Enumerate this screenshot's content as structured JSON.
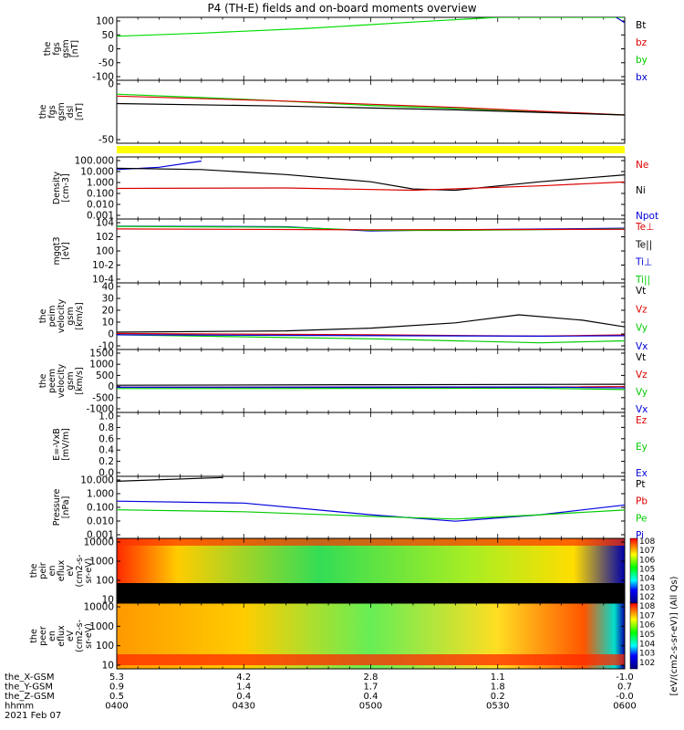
{
  "title": "P4 (TH-E) fields and on-board moments overview",
  "chart_data": [
    {
      "type": "line",
      "ylabel": [
        "the",
        "fgs",
        "gsm",
        "[nT]"
      ],
      "ylim": [
        -100,
        100
      ],
      "yticks": [
        "100",
        "50",
        "0",
        "-50",
        "-100"
      ],
      "legend": [
        "Bt",
        "bz",
        "by",
        "bx"
      ],
      "series": [
        {
          "name": "by",
          "color": "#00dd00",
          "points": [
            [
              0,
              40
            ],
            [
              20,
              50
            ],
            [
              45,
              65
            ],
            [
              70,
              85
            ],
            [
              90,
              100
            ],
            [
              158,
              100
            ],
            [
              158,
              -100
            ]
          ]
        },
        {
          "name": "bx",
          "color": "#0000cc",
          "points": [
            [
              118,
              100
            ],
            [
              125,
              40
            ],
            [
              132,
              -30
            ],
            [
              137,
              -100
            ]
          ]
        },
        {
          "name": "Bt",
          "color": "#0000ff",
          "points": [
            [
              170,
              -100
            ],
            [
              171,
              100
            ]
          ]
        }
      ]
    },
    {
      "type": "line",
      "ylabel": [
        "the",
        "fgs",
        "gsm",
        "dsl",
        "[nT]"
      ],
      "ylim": [
        -75,
        25
      ],
      "yticks": [
        "0",
        "-50"
      ],
      "legend": [],
      "series": [
        {
          "name": "by",
          "color": "#00dd00",
          "points": [
            [
              0,
              3
            ],
            [
              30,
              -5
            ],
            [
              60,
              -15
            ],
            [
              90,
              -22
            ],
            [
              120,
              -30
            ],
            [
              150,
              -28
            ],
            [
              160,
              -10
            ],
            [
              165,
              5
            ],
            [
              170,
              25
            ]
          ]
        },
        {
          "name": "bz",
          "color": "#dd0000",
          "points": [
            [
              0,
              0
            ],
            [
              40,
              -8
            ],
            [
              80,
              -18
            ],
            [
              120,
              -30
            ],
            [
              150,
              -45
            ],
            [
              165,
              -60
            ],
            [
              170,
              -65
            ]
          ]
        },
        {
          "name": "Bt",
          "color": "#000000",
          "points": [
            [
              0,
              -12
            ],
            [
              40,
              -16
            ],
            [
              80,
              -22
            ],
            [
              120,
              -30
            ],
            [
              150,
              -28
            ],
            [
              162,
              -40
            ],
            [
              168,
              -55
            ],
            [
              170,
              -70
            ]
          ]
        }
      ]
    },
    {
      "type": "line",
      "scale": "log",
      "ylabel": [
        "Density",
        "[cm^-3]"
      ],
      "ylim": [
        0.0005,
        500
      ],
      "yticks": [
        "100.000",
        "10.000",
        "1.000",
        "0.100",
        "0.010",
        "0.001"
      ],
      "legend": [
        "Ne",
        "Ni",
        "Npot"
      ],
      "series": [
        {
          "name": "Npot",
          "color": "#0000dd",
          "points": [
            [
              0,
              30
            ],
            [
              10,
              50
            ],
            [
              20,
              200
            ]
          ]
        },
        {
          "name": "Ni",
          "color": "#000000",
          "points": [
            [
              0,
              40
            ],
            [
              20,
              30
            ],
            [
              40,
              10
            ],
            [
              60,
              2
            ],
            [
              70,
              0.4
            ],
            [
              80,
              0.3
            ],
            [
              100,
              2
            ],
            [
              130,
              20
            ],
            [
              150,
              80
            ],
            [
              160,
              100
            ],
            [
              170,
              60
            ]
          ]
        },
        {
          "name": "Ne",
          "color": "#dd0000",
          "points": [
            [
              0,
              0.45
            ],
            [
              40,
              0.5
            ],
            [
              70,
              0.3
            ],
            [
              100,
              0.8
            ],
            [
              130,
              3
            ],
            [
              150,
              5
            ],
            [
              160,
              3
            ],
            [
              165,
              0.5
            ],
            [
              168,
              0.05
            ],
            [
              170,
              0.002
            ]
          ]
        }
      ]
    },
    {
      "type": "line",
      "scale": "log",
      "ylabel": [
        "mgqt3",
        "[eV]"
      ],
      "ylim": [
        1e-05,
        10000
      ],
      "yticks": [
        "10^4",
        "10^2",
        "10^0",
        "10^-2",
        "10^-4"
      ],
      "legend": [
        "Te⊥",
        "Te||",
        "Ti⊥",
        "Ti||"
      ],
      "series": [
        {
          "name": "Ti⊥",
          "color": "#0000dd",
          "points": [
            [
              0,
              1000
            ],
            [
              40,
              800
            ],
            [
              60,
              200
            ],
            [
              80,
              300
            ],
            [
              120,
              500
            ],
            [
              150,
              400
            ],
            [
              170,
              150
            ]
          ]
        },
        {
          "name": "Ti||",
          "color": "#00cc00",
          "points": [
            [
              0,
              900
            ],
            [
              40,
              700
            ],
            [
              60,
              250
            ],
            [
              80,
              250
            ],
            [
              120,
              400
            ],
            [
              150,
              300
            ],
            [
              170,
              120
            ]
          ]
        },
        {
          "name": "Te⊥",
          "color": "#dd0000",
          "points": [
            [
              0,
              400
            ],
            [
              60,
              300
            ],
            [
              120,
              350
            ],
            [
              170,
              400
            ]
          ]
        }
      ]
    },
    {
      "type": "line",
      "ylabel": [
        "the",
        "peim",
        "velocity",
        "gsm",
        "[km/s]"
      ],
      "ylim": [
        -10,
        40
      ],
      "yticks": [
        "40",
        "30",
        "20",
        "10",
        "0",
        "-10"
      ],
      "legend": [
        "Vt",
        "Vz",
        "Vy",
        "Vx"
      ],
      "series": [
        {
          "name": "Vt",
          "color": "#000000",
          "points": [
            [
              0,
              3
            ],
            [
              40,
              4
            ],
            [
              60,
              6
            ],
            [
              80,
              10
            ],
            [
              95,
              16
            ],
            [
              110,
              12
            ],
            [
              130,
              2
            ],
            [
              150,
              2
            ],
            [
              160,
              8
            ],
            [
              165,
              25
            ],
            [
              170,
              40
            ]
          ]
        },
        {
          "name": "Vz",
          "color": "#dd0000",
          "points": [
            [
              0,
              2
            ],
            [
              60,
              1
            ],
            [
              100,
              0
            ],
            [
              140,
              2
            ],
            [
              170,
              2
            ]
          ]
        },
        {
          "name": "Vy",
          "color": "#00cc00",
          "points": [
            [
              0,
              1
            ],
            [
              60,
              -2
            ],
            [
              100,
              -5
            ],
            [
              140,
              -2
            ],
            [
              160,
              2
            ],
            [
              170,
              38
            ]
          ]
        },
        {
          "name": "Vx",
          "color": "#0000dd",
          "points": [
            [
              0,
              1
            ],
            [
              100,
              0
            ],
            [
              160,
              1
            ],
            [
              167,
              3
            ],
            [
              170,
              1
            ]
          ]
        }
      ]
    },
    {
      "type": "line",
      "ylabel": [
        "the",
        "peem",
        "velocity",
        "gsm",
        "[km/s]"
      ],
      "ylim": [
        -1000,
        1500
      ],
      "yticks": [
        "1500",
        "1000",
        "500",
        "0",
        "-500",
        "-1000"
      ],
      "legend": [
        "Vt",
        "Vz",
        "Vy",
        "Vx"
      ],
      "series": [
        {
          "name": "Vt",
          "color": "#000000",
          "points": [
            [
              0,
              80
            ],
            [
              60,
              100
            ],
            [
              120,
              120
            ],
            [
              160,
              200
            ],
            [
              167,
              600
            ],
            [
              170,
              1200
            ]
          ]
        },
        {
          "name": "Vz",
          "color": "#dd0000",
          "points": [
            [
              0,
              0
            ],
            [
              100,
              0
            ],
            [
              165,
              100
            ],
            [
              170,
              1000
            ]
          ]
        },
        {
          "name": "Vy",
          "color": "#00cc00",
          "points": [
            [
              0,
              -50
            ],
            [
              100,
              -40
            ],
            [
              165,
              -200
            ],
            [
              170,
              -900
            ]
          ]
        },
        {
          "name": "Vx",
          "color": "#0000dd",
          "points": [
            [
              0,
              0
            ],
            [
              100,
              10
            ],
            [
              165,
              -100
            ],
            [
              170,
              -500
            ]
          ]
        }
      ]
    },
    {
      "type": "line",
      "ylabel": [
        "E=-VxB",
        "[mV/m]"
      ],
      "ylim": [
        0,
        1
      ],
      "yticks": [
        "1.0",
        "0.8",
        "0.6",
        "0.4",
        "0.2",
        "0.0"
      ],
      "legend": [
        "Ez",
        "Ey",
        "Ex"
      ],
      "series": []
    },
    {
      "type": "line",
      "scale": "log",
      "ylabel": [
        "Pressure",
        "[nPa]"
      ],
      "ylim": [
        0.0005,
        50
      ],
      "yticks": [
        "10.000",
        "1.000",
        "0.100",
        "0.010",
        "0.001"
      ],
      "legend": [
        "Pt",
        "Pb",
        "Pe",
        "Pi"
      ],
      "series": [
        {
          "name": "Pt",
          "color": "#000000",
          "points": [
            [
              0,
              20
            ],
            [
              25,
              40
            ]
          ]
        },
        {
          "name": "Pi",
          "color": "#0000dd",
          "points": [
            [
              0,
              0.5
            ],
            [
              30,
              0.35
            ],
            [
              60,
              0.04
            ],
            [
              80,
              0.012
            ],
            [
              100,
              0.04
            ],
            [
              130,
              0.6
            ],
            [
              150,
              2
            ],
            [
              160,
              1
            ],
            [
              167,
              0.05
            ],
            [
              170,
              0.001
            ]
          ]
        },
        {
          "name": "Pe",
          "color": "#00cc00",
          "points": [
            [
              0,
              0.1
            ],
            [
              30,
              0.07
            ],
            [
              60,
              0.03
            ],
            [
              80,
              0.018
            ],
            [
              100,
              0.04
            ],
            [
              130,
              0.15
            ],
            [
              150,
              0.4
            ],
            [
              160,
              0.3
            ],
            [
              167,
              0.03
            ],
            [
              170,
              0.001
            ]
          ]
        }
      ]
    },
    {
      "type": "heatmap",
      "ylabel": [
        "the",
        "peir",
        "en",
        "eflux",
        "eV",
        "(cm2-s-",
        "sr-eV)"
      ],
      "yticks": [
        "10000",
        "1000",
        "100",
        "10"
      ],
      "colorbar_ticks": [
        "10^8",
        "10^7",
        "10^6",
        "10^5",
        "10^4",
        "10^3",
        "10^2"
      ]
    },
    {
      "type": "heatmap",
      "ylabel": [
        "the",
        "peer",
        "en",
        "eflux",
        "eV",
        "(cm2-s-",
        "sr-eV)"
      ],
      "yticks": [
        "10000",
        "1000",
        "100",
        "10"
      ],
      "colorbar_ticks": [
        "10^8",
        "10^7",
        "10^6",
        "10^5",
        "10^4",
        "10^3",
        "10^2"
      ]
    }
  ],
  "colorbar_label": "[eV/(cm^2-s-sr-eV)] (All Qs)",
  "xaxis": {
    "rows": [
      {
        "label": "the_X-GSM",
        "values": [
          "5.3",
          "4.2",
          "2.8",
          "1.1",
          "-1.0"
        ]
      },
      {
        "label": "the_Y-GSM",
        "values": [
          "0.9",
          "1.4",
          "1.7",
          "1.8",
          "0.7"
        ]
      },
      {
        "label": "the_Z-GSM",
        "values": [
          "0.5",
          "0.4",
          "0.4",
          "0.2",
          "-0.0"
        ]
      },
      {
        "label": "hhmm",
        "values": [
          "0400",
          "0430",
          "0500",
          "0530",
          "0600"
        ]
      }
    ],
    "date": "2021 Feb 07",
    "range_minutes": [
      0,
      120
    ]
  }
}
